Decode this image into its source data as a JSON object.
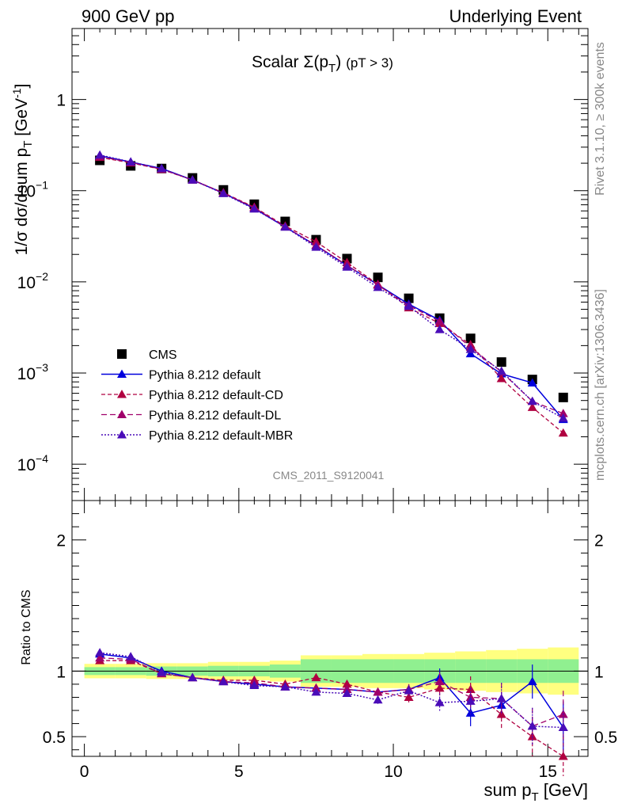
{
  "header": {
    "left": "900 GeV pp",
    "right": "Underlying Event"
  },
  "plot_title": {
    "main": "Scalar Σ(p",
    "sub": "T",
    "close": ")",
    "cut": "(pT >  3)"
  },
  "side_labels": {
    "top": "Rivet 3.1.10, ≥ 300k events",
    "bottom": "mcplots.cern.ch [arXiv:1306.3436]"
  },
  "analysis_label": "CMS_2011_S9120041",
  "colors": {
    "cms": "#000000",
    "default": "#0000dd",
    "cd": "#b00040",
    "dl": "#a0006a",
    "mbr": "#4a0cb8",
    "band_yellow": "#ffff80",
    "band_green": "#90f090"
  },
  "chart_data": [
    {
      "type": "line",
      "name": "main",
      "ylabel": "1/σ dσ/dsum p",
      "ylabel_sub": "T",
      "ylabel_unit": " [GeV",
      "ylabel_sup": "-1",
      "ylabel_close": "]",
      "yscale": "log",
      "ylim": [
        4e-05,
        6
      ],
      "xlim": [
        -0.4,
        16.3
      ],
      "y_ticks": [
        {
          "value": 1,
          "label": "1"
        },
        {
          "value": 0.1,
          "label": "10",
          "exp": "−1"
        },
        {
          "value": 0.01,
          "label": "10",
          "exp": "−2"
        },
        {
          "value": 0.001,
          "label": "10",
          "exp": "−3"
        },
        {
          "value": 0.0001,
          "label": "10",
          "exp": "−4"
        }
      ],
      "x": [
        0.5,
        1.5,
        2.5,
        3.5,
        4.5,
        5.5,
        6.5,
        7.5,
        8.5,
        9.5,
        10.5,
        11.5,
        12.5,
        13.5,
        14.5,
        15.5
      ],
      "series": [
        {
          "name": "CMS",
          "key": "cms",
          "values": [
            0.215,
            0.187,
            0.175,
            0.138,
            0.102,
            0.071,
            0.046,
            0.029,
            0.018,
            0.0112,
            0.0066,
            0.004,
            0.0024,
            0.00132,
            0.00085,
            0.00054
          ]
        },
        {
          "name": "Pythia 8.212 default",
          "key": "default",
          "values": [
            0.242,
            0.206,
            0.175,
            0.131,
            0.094,
            0.064,
            0.04,
            0.025,
            0.0151,
            0.0093,
            0.0057,
            0.0038,
            0.00163,
            0.00098,
            0.00078,
            0.00031
          ]
        },
        {
          "name": "Pythia 8.212 default-CD",
          "key": "cd",
          "values": [
            0.232,
            0.202,
            0.171,
            0.131,
            0.095,
            0.066,
            0.041,
            0.0275,
            0.0163,
            0.0094,
            0.0052,
            0.0035,
            0.00205,
            0.00087,
            0.00042,
            0.00022
          ]
        },
        {
          "name": "Pythia 8.212 default-DL",
          "key": "dl",
          "values": [
            0.236,
            0.204,
            0.172,
            0.131,
            0.094,
            0.065,
            0.04,
            0.0252,
            0.0152,
            0.0092,
            0.0055,
            0.0037,
            0.00192,
            0.00103,
            0.00049,
            0.00036
          ]
        },
        {
          "name": "Pythia 8.212 default-MBR",
          "key": "mbr",
          "values": [
            0.246,
            0.207,
            0.175,
            0.131,
            0.093,
            0.063,
            0.04,
            0.024,
            0.0145,
            0.0087,
            0.0054,
            0.003,
            0.00182,
            0.00105,
            0.00049,
            0.00032
          ]
        }
      ],
      "legend_position": "lower-left"
    },
    {
      "type": "line",
      "name": "ratio",
      "ylabel": "Ratio to CMS",
      "xlabel": "sum p",
      "xlabel_sub": "T",
      "xlabel_unit": " [GeV]",
      "ylim": [
        0.35,
        2.3
      ],
      "xlim": [
        -0.4,
        16.3
      ],
      "y_ticks": [
        {
          "value": 0.5,
          "label": "0.5"
        },
        {
          "value": 1,
          "label": "1"
        },
        {
          "value": 2,
          "label": "2"
        }
      ],
      "x_ticks": [
        {
          "value": 0,
          "label": "0"
        },
        {
          "value": 5,
          "label": "5"
        },
        {
          "value": 10,
          "label": "10"
        },
        {
          "value": 15,
          "label": "15"
        }
      ],
      "x": [
        0.5,
        1.5,
        2.5,
        3.5,
        4.5,
        5.5,
        6.5,
        7.5,
        8.5,
        9.5,
        10.5,
        11.5,
        12.5,
        13.5,
        14.5,
        15.5
      ],
      "band_yellow": [
        0.055,
        0.055,
        0.06,
        0.06,
        0.07,
        0.07,
        0.08,
        0.12,
        0.12,
        0.13,
        0.13,
        0.14,
        0.15,
        0.16,
        0.17,
        0.18
      ],
      "band_green": [
        0.03,
        0.03,
        0.035,
        0.035,
        0.04,
        0.04,
        0.05,
        0.09,
        0.09,
        0.09,
        0.09,
        0.09,
        0.09,
        0.09,
        0.09,
        0.09
      ],
      "series": [
        {
          "name": "Pythia 8.212 default",
          "key": "default",
          "values": [
            1.13,
            1.1,
            1.0,
            0.95,
            0.92,
            0.9,
            0.88,
            0.87,
            0.86,
            0.84,
            0.86,
            0.95,
            0.68,
            0.74,
            0.92,
            0.57
          ],
          "errors": [
            0,
            0,
            0,
            0,
            0,
            0,
            0,
            0.02,
            0.02,
            0.03,
            0.04,
            0.07,
            0.1,
            0.1,
            0.13,
            0.2
          ]
        },
        {
          "name": "Pythia 8.212 default-CD",
          "key": "cd",
          "values": [
            1.08,
            1.08,
            0.98,
            0.95,
            0.93,
            0.93,
            0.9,
            0.95,
            0.9,
            0.84,
            0.8,
            0.87,
            0.86,
            0.67,
            0.5,
            0.35
          ],
          "errors": [
            0,
            0,
            0,
            0,
            0,
            0,
            0,
            0.02,
            0.02,
            0.03,
            0.04,
            0.07,
            0.1,
            0.12,
            0.15,
            0.15
          ]
        },
        {
          "name": "Pythia 8.212 default-DL",
          "key": "dl",
          "values": [
            1.1,
            1.09,
            0.98,
            0.95,
            0.92,
            0.91,
            0.88,
            0.87,
            0.86,
            0.84,
            0.86,
            0.92,
            0.8,
            0.79,
            0.58,
            0.67
          ],
          "errors": [
            0,
            0,
            0,
            0,
            0,
            0,
            0,
            0.02,
            0.02,
            0.03,
            0.04,
            0.07,
            0.1,
            0.12,
            0.14,
            0.18
          ]
        },
        {
          "name": "Pythia 8.212 default-MBR",
          "key": "mbr",
          "values": [
            1.14,
            1.11,
            0.99,
            0.95,
            0.92,
            0.89,
            0.88,
            0.84,
            0.83,
            0.78,
            0.85,
            0.76,
            0.77,
            0.79,
            0.58,
            0.57
          ],
          "errors": [
            0,
            0,
            0,
            0,
            0,
            0,
            0,
            0.02,
            0.02,
            0.03,
            0.04,
            0.07,
            0.1,
            0.12,
            0.14,
            0.18
          ]
        }
      ]
    }
  ]
}
